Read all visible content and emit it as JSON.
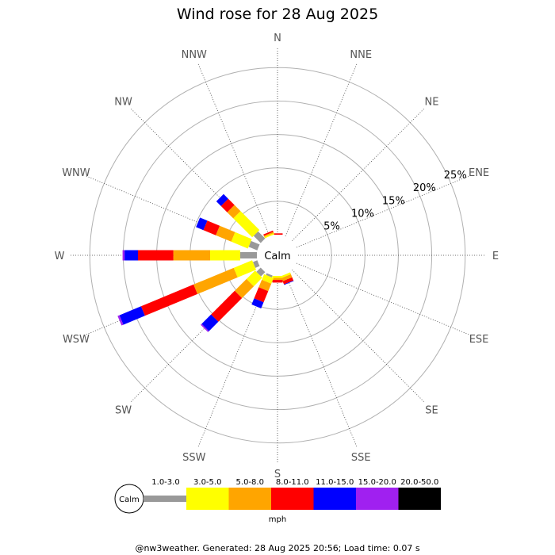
{
  "chart_data": {
    "type": "wind-rose",
    "title": "Wind rose for 28 Aug 2025",
    "directions": [
      "N",
      "NNE",
      "NE",
      "ENE",
      "E",
      "ESE",
      "SE",
      "SSE",
      "S",
      "SSW",
      "SW",
      "WSW",
      "W",
      "WNW",
      "NW",
      "NNW"
    ],
    "rings": [
      5,
      10,
      15,
      20,
      25
    ],
    "ring_labels": [
      "5%",
      "10%",
      "15%",
      "20%",
      "25%"
    ],
    "rmax": 28,
    "calm_label": "Calm",
    "unit": "mph",
    "speed_bins": [
      {
        "label": "1.0-3.0",
        "color": "#999999"
      },
      {
        "label": "3.0-5.0",
        "color": "#ffff00"
      },
      {
        "label": "5.0-8.0",
        "color": "#ffa500"
      },
      {
        "label": "8.0-11.0",
        "color": "#ff0000"
      },
      {
        "label": "11.0-15.0",
        "color": "#0000ff"
      },
      {
        "label": "15.0-20.0",
        "color": "#a020f0"
      },
      {
        "label": "20.0-50.0",
        "color": "#000000"
      }
    ],
    "frequencies": {
      "N": [
        0.0,
        0.0,
        0.0,
        0.2,
        0.0,
        0.0,
        0.0
      ],
      "NNE": [
        0.0,
        0.0,
        0.0,
        0.0,
        0.0,
        0.0,
        0.0
      ],
      "NE": [
        0.0,
        0.0,
        0.0,
        0.0,
        0.0,
        0.0,
        0.0
      ],
      "ENE": [
        0.0,
        0.0,
        0.0,
        0.0,
        0.0,
        0.0,
        0.0
      ],
      "E": [
        0.0,
        0.0,
        0.0,
        0.0,
        0.0,
        0.0,
        0.0
      ],
      "ESE": [
        0.0,
        0.0,
        0.0,
        0.0,
        0.0,
        0.0,
        0.0
      ],
      "SE": [
        0.0,
        0.0,
        0.0,
        0.0,
        0.0,
        0.0,
        0.0
      ],
      "SSE": [
        0.0,
        0.3,
        0.5,
        0.5,
        0.1,
        0.0,
        0.0
      ],
      "S": [
        0.0,
        0.3,
        0.3,
        0.4,
        0.0,
        0.0,
        0.0
      ],
      "SSW": [
        0.3,
        0.9,
        1.2,
        1.8,
        1.0,
        0.0,
        0.0
      ],
      "SW": [
        0.9,
        1.8,
        2.5,
        5.0,
        2.0,
        0.2,
        0.0
      ],
      "WSW": [
        0.7,
        3.0,
        6.5,
        8.5,
        3.5,
        0.3,
        0.0
      ],
      "W": [
        2.5,
        4.5,
        5.5,
        5.3,
        2.0,
        0.3,
        0.0
      ],
      "WNW": [
        1.4,
        2.7,
        2.5,
        2.0,
        1.2,
        0.0,
        0.0
      ],
      "NW": [
        1.5,
        4.0,
        1.3,
        1.3,
        1.0,
        0.0,
        0.0
      ],
      "NNW": [
        0.0,
        0.2,
        0.2,
        0.2,
        0.0,
        0.0,
        0.0
      ]
    }
  },
  "footer": "@nw3weather. Generated: 28 Aug 2025 20:56; Load time: 0.07 s"
}
